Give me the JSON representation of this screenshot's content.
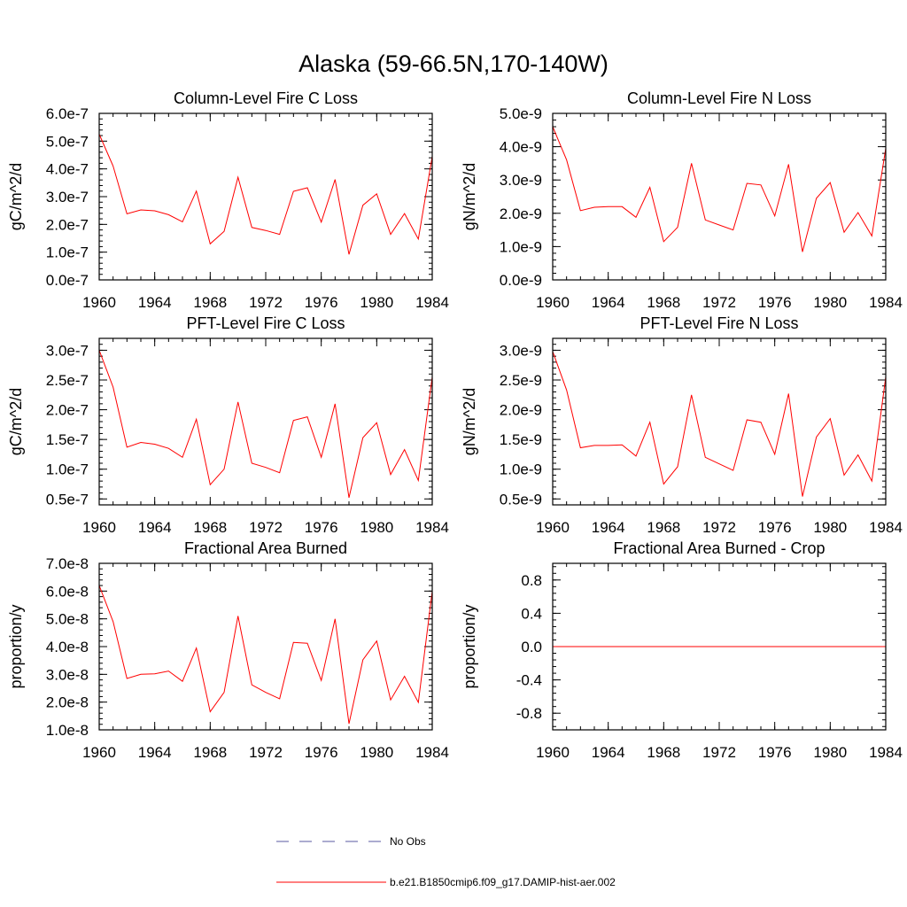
{
  "figure": {
    "title": "Alaska (59-66.5N,170-140W)"
  },
  "chart_data": [
    {
      "type": "line",
      "title": "Column-Level Fire C Loss",
      "ylabel": "gC/m^2/d",
      "xlabel": "",
      "xlim": [
        1960,
        1984
      ],
      "ylim": [
        0,
        6e-07
      ],
      "x_ticks": [
        1960,
        1964,
        1968,
        1972,
        1976,
        1980,
        1984
      ],
      "y_ticks": [
        0,
        1e-07,
        2e-07,
        3e-07,
        4e-07,
        5e-07,
        6e-07
      ],
      "y_tick_labels": [
        "0.0e-7",
        "1.0e-7",
        "2.0e-7",
        "3.0e-7",
        "4.0e-7",
        "5.0e-7",
        "6.0e-7"
      ],
      "x": [
        1960,
        1961,
        1962,
        1963,
        1964,
        1965,
        1966,
        1967,
        1968,
        1969,
        1970,
        1971,
        1972,
        1973,
        1974,
        1975,
        1976,
        1977,
        1978,
        1979,
        1980,
        1981,
        1982,
        1983,
        1984
      ],
      "series": [
        {
          "name": "b.e21.B1850cmip6.f09_g17.DAMIP-hist-aer.002",
          "color": "#ff0000",
          "values": [
            5.25e-07,
            4.1e-07,
            2.38e-07,
            2.52e-07,
            2.49e-07,
            2.35e-07,
            2.09e-07,
            3.2e-07,
            1.3e-07,
            1.75e-07,
            3.7e-07,
            1.89e-07,
            1.78e-07,
            1.64e-07,
            3.19e-07,
            3.32e-07,
            2.08e-07,
            3.62e-07,
            9.2e-08,
            2.69e-07,
            3.1e-07,
            1.64e-07,
            2.39e-07,
            1.47e-07,
            4.45e-07
          ]
        }
      ]
    },
    {
      "type": "line",
      "title": "Column-Level Fire N Loss",
      "ylabel": "gN/m^2/d",
      "xlabel": "",
      "xlim": [
        1960,
        1984
      ],
      "ylim": [
        0,
        5e-09
      ],
      "x_ticks": [
        1960,
        1964,
        1968,
        1972,
        1976,
        1980,
        1984
      ],
      "y_ticks": [
        0,
        1e-09,
        2e-09,
        3e-09,
        4e-09,
        5e-09
      ],
      "y_tick_labels": [
        "0.0e-9",
        "1.0e-9",
        "2.0e-9",
        "3.0e-9",
        "4.0e-9",
        "5.0e-9"
      ],
      "x": [
        1960,
        1961,
        1962,
        1963,
        1964,
        1965,
        1966,
        1967,
        1968,
        1969,
        1970,
        1971,
        1972,
        1973,
        1974,
        1975,
        1976,
        1977,
        1978,
        1979,
        1980,
        1981,
        1982,
        1983,
        1984
      ],
      "series": [
        {
          "name": "b.e21.B1850cmip6.f09_g17.DAMIP-hist-aer.002",
          "color": "#ff0000",
          "values": [
            4.6e-09,
            3.6e-09,
            2.08e-09,
            2.18e-09,
            2.2e-09,
            2.2e-09,
            1.88e-09,
            2.78e-09,
            1.15e-09,
            1.58e-09,
            3.5e-09,
            1.8e-09,
            1.65e-09,
            1.5e-09,
            2.9e-09,
            2.85e-09,
            1.92e-09,
            3.47e-09,
            8.4e-10,
            2.45e-09,
            2.92e-09,
            1.43e-09,
            2.02e-09,
            1.32e-09,
            3.95e-09
          ]
        }
      ]
    },
    {
      "type": "line",
      "title": "PFT-Level Fire C Loss",
      "ylabel": "gC/m^2/d",
      "xlabel": "",
      "xlim": [
        1960,
        1984
      ],
      "ylim": [
        4e-08,
        3.2e-07
      ],
      "x_ticks": [
        1960,
        1964,
        1968,
        1972,
        1976,
        1980,
        1984
      ],
      "y_ticks": [
        5e-08,
        1e-07,
        1.5e-07,
        2e-07,
        2.5e-07,
        3e-07
      ],
      "y_tick_labels": [
        "0.5e-7",
        "1.0e-7",
        "1.5e-7",
        "2.0e-7",
        "2.5e-7",
        "3.0e-7"
      ],
      "x": [
        1960,
        1961,
        1962,
        1963,
        1964,
        1965,
        1966,
        1967,
        1968,
        1969,
        1970,
        1971,
        1972,
        1973,
        1974,
        1975,
        1976,
        1977,
        1978,
        1979,
        1980,
        1981,
        1982,
        1983,
        1984
      ],
      "series": [
        {
          "name": "b.e21.B1850cmip6.f09_g17.DAMIP-hist-aer.002",
          "color": "#ff0000",
          "values": [
            3e-07,
            2.38e-07,
            1.37e-07,
            1.45e-07,
            1.42e-07,
            1.35e-07,
            1.2e-07,
            1.84e-07,
            7.4e-08,
            1e-07,
            2.13e-07,
            1.1e-07,
            1.03e-07,
            9.4e-08,
            1.82e-07,
            1.88e-07,
            1.2e-07,
            2.1e-07,
            5.2e-08,
            1.53e-07,
            1.78e-07,
            9.1e-08,
            1.33e-07,
            8.1e-08,
            2.55e-07
          ]
        }
      ]
    },
    {
      "type": "line",
      "title": "PFT-Level Fire N Loss",
      "ylabel": "gN/m^2/d",
      "xlabel": "",
      "xlim": [
        1960,
        1984
      ],
      "ylim": [
        4e-10,
        3.2e-09
      ],
      "x_ticks": [
        1960,
        1964,
        1968,
        1972,
        1976,
        1980,
        1984
      ],
      "y_ticks": [
        5e-10,
        1e-09,
        1.5e-09,
        2e-09,
        2.5e-09,
        3e-09
      ],
      "y_tick_labels": [
        "0.5e-9",
        "1.0e-9",
        "1.5e-9",
        "2.0e-9",
        "2.5e-9",
        "3.0e-9"
      ],
      "x": [
        1960,
        1961,
        1962,
        1963,
        1964,
        1965,
        1966,
        1967,
        1968,
        1969,
        1970,
        1971,
        1972,
        1973,
        1974,
        1975,
        1976,
        1977,
        1978,
        1979,
        1980,
        1981,
        1982,
        1983,
        1984
      ],
      "series": [
        {
          "name": "b.e21.B1850cmip6.f09_g17.DAMIP-hist-aer.002",
          "color": "#ff0000",
          "values": [
            2.98e-09,
            2.33e-09,
            1.36e-09,
            1.4e-09,
            1.4e-09,
            1.41e-09,
            1.22e-09,
            1.79e-09,
            7.5e-10,
            1.04e-09,
            2.25e-09,
            1.2e-09,
            1.09e-09,
            9.8e-10,
            1.83e-09,
            1.79e-09,
            1.25e-09,
            2.27e-09,
            5.4e-10,
            1.54e-09,
            1.85e-09,
            9e-10,
            1.24e-09,
            8e-10,
            2.55e-09
          ]
        }
      ]
    },
    {
      "type": "line",
      "title": "Fractional Area Burned",
      "ylabel": "proportion/y",
      "xlabel": "",
      "xlim": [
        1960,
        1984
      ],
      "ylim": [
        1e-08,
        7e-08
      ],
      "x_ticks": [
        1960,
        1964,
        1968,
        1972,
        1976,
        1980,
        1984
      ],
      "y_ticks": [
        1e-08,
        2e-08,
        3e-08,
        4e-08,
        5e-08,
        6e-08,
        7e-08
      ],
      "y_tick_labels": [
        "1.0e-8",
        "2.0e-8",
        "3.0e-8",
        "4.0e-8",
        "5.0e-8",
        "6.0e-8",
        "7.0e-8"
      ],
      "x": [
        1960,
        1961,
        1962,
        1963,
        1964,
        1965,
        1966,
        1967,
        1968,
        1969,
        1970,
        1971,
        1972,
        1973,
        1974,
        1975,
        1976,
        1977,
        1978,
        1979,
        1980,
        1981,
        1982,
        1983,
        1984
      ],
      "series": [
        {
          "name": "b.e21.B1850cmip6.f09_g17.DAMIP-hist-aer.002",
          "color": "#ff0000",
          "values": [
            6.2e-08,
            4.9e-08,
            2.85e-08,
            3e-08,
            3.02e-08,
            3.12e-08,
            2.75e-08,
            3.95e-08,
            1.65e-08,
            2.35e-08,
            5.1e-08,
            2.62e-08,
            2.35e-08,
            2.12e-08,
            4.15e-08,
            4.12e-08,
            2.78e-08,
            5e-08,
            1.22e-08,
            3.52e-08,
            4.2e-08,
            2.08e-08,
            2.93e-08,
            1.99e-08,
            6e-08
          ]
        }
      ]
    },
    {
      "type": "line",
      "title": "Fractional Area Burned - Crop",
      "ylabel": "proportion/y",
      "xlabel": "",
      "xlim": [
        1960,
        1984
      ],
      "ylim": [
        -1.0,
        1.0
      ],
      "x_ticks": [
        1960,
        1964,
        1968,
        1972,
        1976,
        1980,
        1984
      ],
      "y_ticks": [
        -0.8,
        -0.4,
        0,
        0.4,
        0.8
      ],
      "y_tick_labels": [
        "-0.8",
        "-0.4",
        "0.0",
        "0.4",
        "0.8"
      ],
      "x": [
        1960,
        1961,
        1962,
        1963,
        1964,
        1965,
        1966,
        1967,
        1968,
        1969,
        1970,
        1971,
        1972,
        1973,
        1974,
        1975,
        1976,
        1977,
        1978,
        1979,
        1980,
        1981,
        1982,
        1983,
        1984
      ],
      "series": [
        {
          "name": "b.e21.B1850cmip6.f09_g17.DAMIP-hist-aer.002",
          "color": "#ff0000",
          "values": [
            0,
            0,
            0,
            0,
            0,
            0,
            0,
            0,
            0,
            0,
            0,
            0,
            0,
            0,
            0,
            0,
            0,
            0,
            0,
            0,
            0,
            0,
            0,
            0,
            0
          ]
        }
      ]
    }
  ],
  "legend": {
    "items": [
      {
        "label": "No Obs",
        "color": "#5a5aa0",
        "style": "dashed"
      },
      {
        "label": "b.e21.B1850cmip6.f09_g17.DAMIP-hist-aer.002",
        "color": "#ff0000",
        "style": "solid"
      }
    ]
  }
}
